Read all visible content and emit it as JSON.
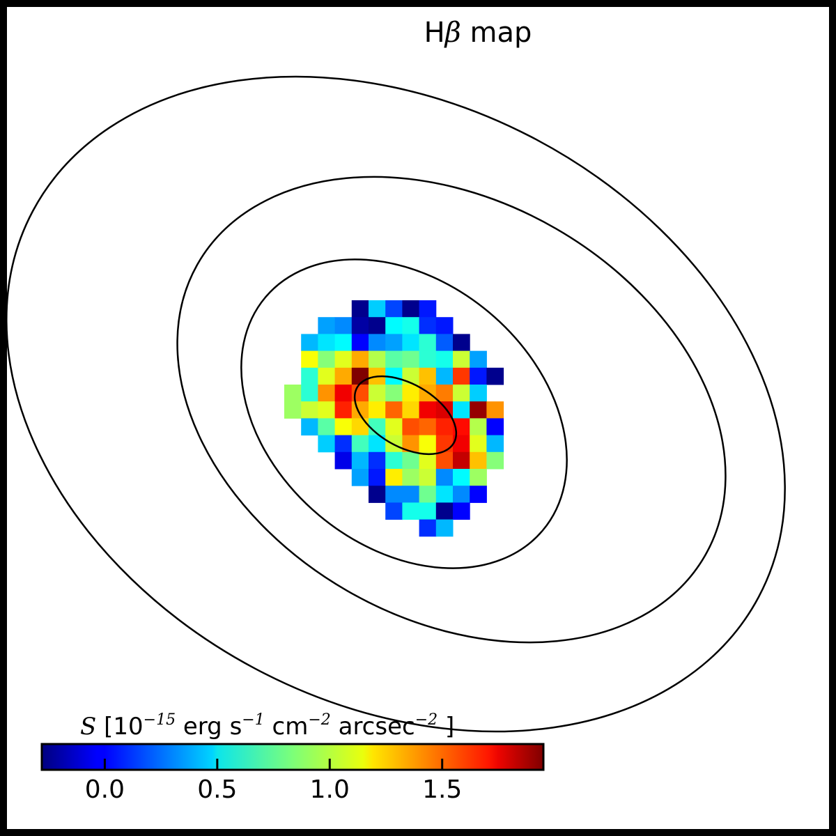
{
  "chart_data": {
    "type": "heatmap",
    "title": "Hβ map",
    "title_parts": {
      "prefix": "H",
      "greek": "β",
      "suffix": " map"
    },
    "colormap": "jet",
    "colorbar": {
      "label": "S [10^-15 erg s^-1 cm^-2 arcsec^-2]",
      "label_parts": {
        "symbol": "S",
        "open": " [10",
        "exp1": "−15",
        "unit_erg": " erg s",
        "exp2": "−1",
        "unit_cm": " cm",
        "exp3": "−2",
        "unit_arcsec": " arcsec",
        "exp4": "−2",
        "close": " ]"
      },
      "range": [
        -0.28,
        1.95
      ],
      "orientation": "horizontal",
      "placement": "bottom-left",
      "ticks": [
        0.0,
        0.5,
        1.0,
        1.5
      ],
      "tick_labels": [
        "0.0",
        "0.5",
        "1.0",
        "1.5"
      ]
    },
    "grid": {
      "rows": 14,
      "cols": 14,
      "rows_values": [
        [
          null,
          null,
          null,
          null,
          -0.25,
          0.45,
          0.15,
          -0.25,
          0.05,
          null,
          null,
          null,
          null,
          null
        ],
        [
          null,
          null,
          0.35,
          0.3,
          -0.2,
          -0.25,
          0.55,
          0.6,
          0.1,
          0.05,
          null,
          null,
          null,
          null
        ],
        [
          null,
          0.4,
          0.5,
          0.55,
          0.0,
          0.3,
          0.35,
          0.5,
          0.65,
          0.2,
          -0.25,
          null,
          null,
          null
        ],
        [
          null,
          1.1,
          0.85,
          1.05,
          1.3,
          0.95,
          0.75,
          0.8,
          0.65,
          0.6,
          1.0,
          0.35,
          null,
          null
        ],
        [
          null,
          0.65,
          1.05,
          1.3,
          1.95,
          1.25,
          0.55,
          1.0,
          1.25,
          0.4,
          1.55,
          0.05,
          -0.25,
          null
        ],
        [
          0.9,
          0.65,
          1.35,
          1.7,
          1.5,
          1.0,
          0.85,
          1.15,
          1.3,
          1.4,
          1.0,
          0.45,
          null,
          null
        ],
        [
          0.9,
          1.0,
          1.05,
          1.6,
          1.3,
          1.15,
          1.45,
          1.2,
          1.7,
          1.75,
          0.5,
          1.9,
          1.35,
          null
        ],
        [
          null,
          0.4,
          0.75,
          1.1,
          1.2,
          0.7,
          1.05,
          1.5,
          1.45,
          1.6,
          1.65,
          0.95,
          0.0,
          null
        ],
        [
          null,
          null,
          0.45,
          0.1,
          0.7,
          0.5,
          1.0,
          1.35,
          1.1,
          1.55,
          1.7,
          1.05,
          0.4,
          null
        ],
        [
          null,
          null,
          null,
          -0.05,
          0.4,
          0.1,
          0.65,
          0.8,
          1.05,
          1.5,
          1.8,
          1.25,
          0.85,
          null
        ],
        [
          null,
          null,
          null,
          null,
          0.35,
          0.05,
          1.15,
          0.9,
          1.0,
          0.3,
          0.55,
          0.9,
          null,
          null
        ],
        [
          null,
          null,
          null,
          null,
          null,
          -0.25,
          0.3,
          0.3,
          0.8,
          0.5,
          0.3,
          0.0,
          null,
          null
        ],
        [
          null,
          null,
          null,
          null,
          null,
          null,
          0.15,
          0.6,
          0.6,
          -0.25,
          0.0,
          null,
          null,
          null
        ],
        [
          null,
          null,
          null,
          null,
          null,
          null,
          null,
          null,
          0.1,
          0.4,
          null,
          null,
          null,
          null
        ]
      ]
    },
    "contours": [
      {
        "level": 1,
        "center": [
          0.0,
          0.0
        ],
        "semi_axes": [
          80,
          45
        ],
        "angle_deg": 30
      },
      {
        "level": 2,
        "center": [
          0.0,
          0.0
        ],
        "semi_axes": [
          260,
          190
        ],
        "angle_deg": 40
      },
      {
        "level": 3,
        "center": [
          0.0,
          0.0
        ],
        "semi_axes": [
          420,
          300
        ],
        "angle_deg": 30
      },
      {
        "level": 4,
        "center": [
          0.0,
          0.0
        ],
        "semi_axes": [
          590,
          430
        ],
        "angle_deg": 28
      }
    ]
  }
}
